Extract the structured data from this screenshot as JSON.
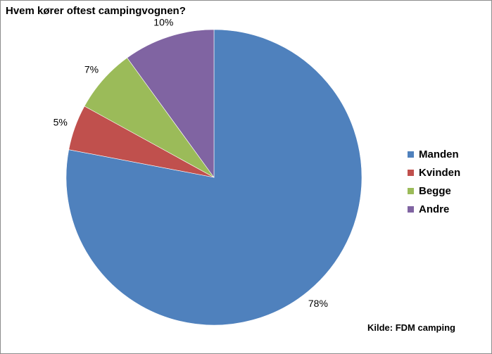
{
  "chart_data": {
    "type": "pie",
    "title": "Hvem kører oftest campingvognen?",
    "categories": [
      "Manden",
      "Kvinden",
      "Begge",
      "Andre"
    ],
    "values": [
      78,
      5,
      7,
      10
    ],
    "value_labels": [
      "78%",
      "5%",
      "7%",
      "10%"
    ],
    "colors": [
      "#4f81bd",
      "#c0504d",
      "#9bbb59",
      "#8064a2"
    ],
    "legend_position": "right",
    "source": "Kilde: FDM camping"
  }
}
